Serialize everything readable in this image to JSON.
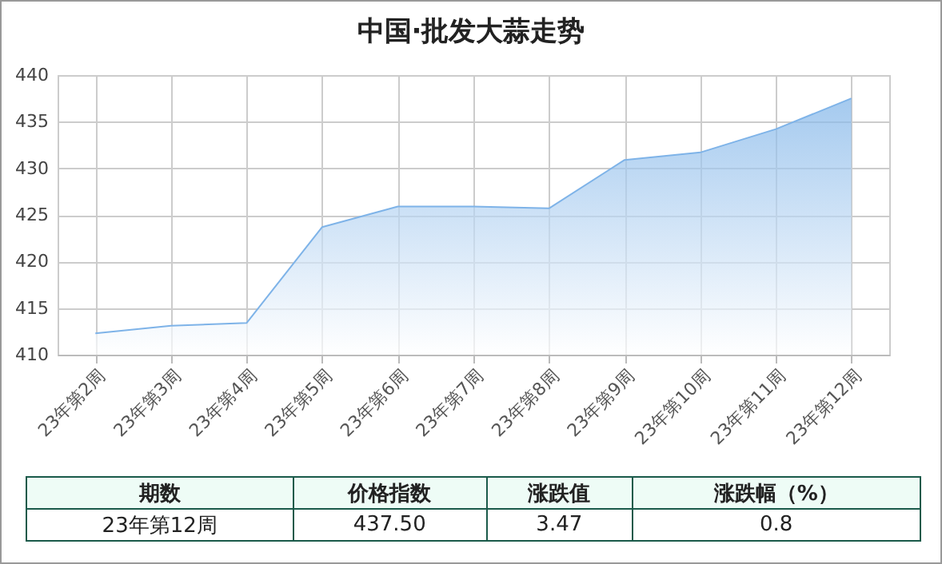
{
  "chart_data": {
    "type": "area",
    "title": "中国·批发大蒜走势",
    "categories": [
      "23年第2周",
      "23年第3周",
      "23年第4周",
      "23年第5周",
      "23年第6周",
      "23年第7周",
      "23年第8周",
      "23年第9周",
      "23年第10周",
      "23年第11周",
      "23年第12周"
    ],
    "series": [
      {
        "color": "#7eb3e8",
        "values": [
          412.3,
          413.1,
          413.4,
          423.7,
          425.9,
          425.9,
          425.7,
          430.9,
          431.7,
          434.2,
          437.5
        ]
      }
    ],
    "ylim": [
      410,
      440
    ],
    "yticks": [
      410,
      415,
      420,
      425,
      430,
      435,
      440
    ],
    "grid": true,
    "annotations": [
      "期数",
      "价格指数",
      "涨跌值",
      "涨跌幅（%）",
      "23年第12周",
      "437.50",
      "3.47",
      "0.8"
    ]
  }
}
